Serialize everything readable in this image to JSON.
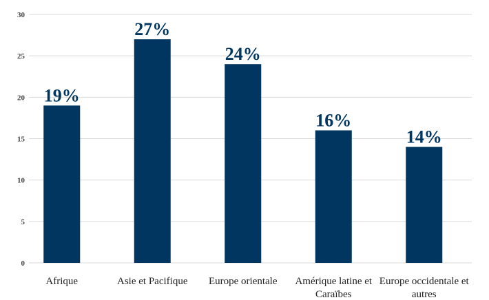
{
  "chart_data": {
    "type": "bar",
    "categories": [
      "Afrique",
      "Asie et Pacifique",
      "Europe orientale",
      "Amérique latine et Caraïbes",
      "Europe occidentale et autres"
    ],
    "values": [
      19,
      27,
      24,
      16,
      14
    ],
    "value_labels": [
      "19%",
      "27%",
      "24%",
      "16%",
      "14%"
    ],
    "color": "#003660",
    "ylim": [
      0,
      30
    ],
    "yticks": [
      0,
      5,
      10,
      15,
      20,
      25,
      30
    ],
    "grid": true
  }
}
